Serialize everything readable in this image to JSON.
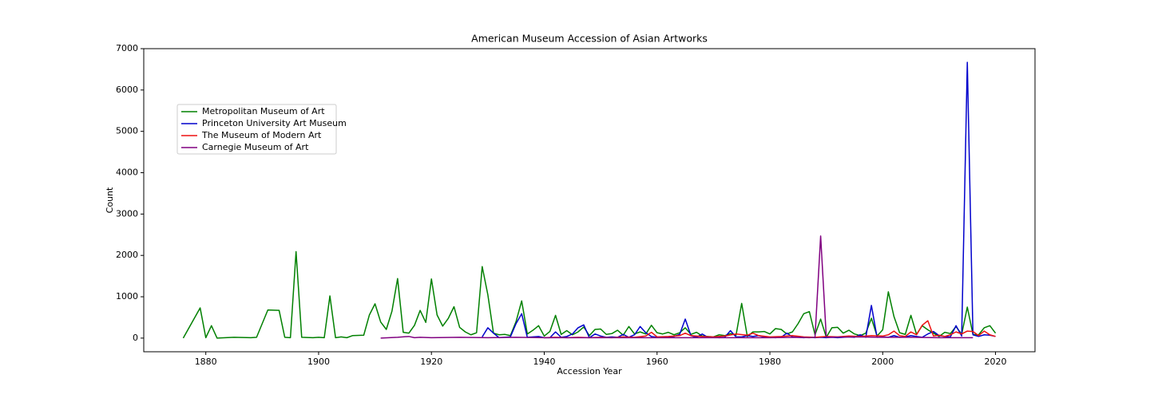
{
  "chart_data": {
    "type": "line",
    "title": "American Museum Accession of Asian Artworks",
    "xlabel": "Accession Year",
    "ylabel": "Count",
    "xlim": [
      1869,
      2027
    ],
    "ylim": [
      -330,
      7000
    ],
    "xticks": [
      1880,
      1900,
      1920,
      1940,
      1960,
      1980,
      2000,
      2020
    ],
    "yticks": [
      0,
      1000,
      2000,
      3000,
      4000,
      5000,
      6000,
      7000
    ],
    "legend": "upper left",
    "grid": false,
    "series": [
      {
        "name": "Metropolitan Museum of Art",
        "color": "#008000",
        "x": [
          1876,
          1879,
          1880,
          1881,
          1882,
          1885,
          1888,
          1889,
          1891,
          1893,
          1894,
          1895,
          1896,
          1897,
          1899,
          1900,
          1901,
          1902,
          1903,
          1904,
          1905,
          1906,
          1908,
          1909,
          1910,
          1911,
          1912,
          1913,
          1914,
          1915,
          1916,
          1917,
          1918,
          1919,
          1920,
          1921,
          1922,
          1923,
          1924,
          1925,
          1926,
          1927,
          1928,
          1929,
          1930,
          1931,
          1932,
          1933,
          1934,
          1935,
          1936,
          1937,
          1938,
          1939,
          1940,
          1941,
          1942,
          1943,
          1944,
          1945,
          1946,
          1947,
          1948,
          1949,
          1950,
          1951,
          1952,
          1953,
          1954,
          1955,
          1956,
          1957,
          1958,
          1959,
          1960,
          1961,
          1962,
          1963,
          1964,
          1965,
          1966,
          1967,
          1968,
          1969,
          1970,
          1971,
          1972,
          1973,
          1974,
          1975,
          1976,
          1977,
          1978,
          1979,
          1980,
          1981,
          1982,
          1983,
          1984,
          1985,
          1986,
          1987,
          1988,
          1989,
          1990,
          1991,
          1992,
          1993,
          1994,
          1995,
          1996,
          1997,
          1998,
          1999,
          2000,
          2001,
          2002,
          2003,
          2004,
          2005,
          2006,
          2007,
          2008,
          2009,
          2010,
          2011,
          2012,
          2013,
          2014,
          2015,
          2016,
          2017,
          2018,
          2019,
          2020
        ],
        "values": [
          0,
          730,
          10,
          300,
          0,
          20,
          10,
          20,
          680,
          670,
          20,
          10,
          2090,
          20,
          10,
          20,
          10,
          1020,
          10,
          30,
          10,
          60,
          70,
          560,
          830,
          390,
          210,
          650,
          1440,
          140,
          120,
          310,
          670,
          380,
          1430,
          560,
          290,
          480,
          760,
          260,
          150,
          80,
          130,
          1730,
          1050,
          120,
          80,
          90,
          60,
          400,
          900,
          100,
          190,
          300,
          50,
          160,
          550,
          90,
          180,
          80,
          150,
          270,
          60,
          210,
          220,
          90,
          110,
          190,
          70,
          280,
          100,
          150,
          100,
          310,
          130,
          100,
          140,
          80,
          130,
          250,
          90,
          140,
          50,
          40,
          30,
          80,
          60,
          110,
          70,
          840,
          40,
          150,
          150,
          160,
          100,
          230,
          210,
          100,
          150,
          350,
          590,
          640,
          80,
          460,
          20,
          250,
          260,
          120,
          190,
          100,
          60,
          120,
          480,
          50,
          200,
          1120,
          520,
          130,
          90,
          550,
          90,
          300,
          200,
          120,
          40,
          140,
          110,
          280,
          90,
          750,
          90,
          80,
          250,
          300,
          120
        ]
      },
      {
        "name": "Princeton University Art Museum",
        "color": "#0000cc",
        "x": [
          1929,
          1930,
          1931,
          1932,
          1933,
          1934,
          1935,
          1936,
          1937,
          1938,
          1939,
          1940,
          1941,
          1942,
          1943,
          1944,
          1945,
          1946,
          1947,
          1948,
          1949,
          1950,
          1951,
          1952,
          1953,
          1954,
          1955,
          1956,
          1957,
          1958,
          1959,
          1960,
          1961,
          1962,
          1963,
          1964,
          1965,
          1966,
          1967,
          1968,
          1969,
          1970,
          1971,
          1972,
          1973,
          1974,
          1975,
          1976,
          1977,
          1978,
          1979,
          1980,
          1981,
          1982,
          1983,
          1984,
          1985,
          1986,
          1987,
          1988,
          1989,
          1990,
          1991,
          1992,
          1993,
          1994,
          1995,
          1996,
          1997,
          1998,
          1999,
          2000,
          2001,
          2002,
          2003,
          2004,
          2005,
          2006,
          2007,
          2008,
          2009,
          2010,
          2011,
          2012,
          2013,
          2014,
          2015,
          2016,
          2017,
          2018,
          2019,
          2020
        ],
        "values": [
          30,
          250,
          120,
          10,
          20,
          30,
          350,
          590,
          20,
          30,
          40,
          10,
          10,
          150,
          20,
          40,
          100,
          250,
          320,
          10,
          100,
          50,
          20,
          30,
          20,
          90,
          20,
          80,
          280,
          130,
          40,
          20,
          30,
          20,
          40,
          90,
          460,
          60,
          20,
          100,
          20,
          30,
          10,
          20,
          180,
          30,
          30,
          60,
          40,
          60,
          30,
          20,
          10,
          20,
          120,
          30,
          20,
          10,
          20,
          10,
          20,
          10,
          20,
          10,
          20,
          30,
          20,
          80,
          20,
          790,
          20,
          30,
          20,
          60,
          20,
          30,
          60,
          40,
          20,
          100,
          160,
          60,
          40,
          30,
          300,
          50,
          6670,
          80,
          40,
          80,
          70,
          40
        ]
      },
      {
        "name": "The Museum of Modern Art",
        "color": "#ee1111",
        "x": [
          1940,
          1942,
          1944,
          1946,
          1948,
          1950,
          1952,
          1954,
          1956,
          1958,
          1959,
          1960,
          1962,
          1964,
          1965,
          1966,
          1968,
          1970,
          1972,
          1974,
          1976,
          1977,
          1978,
          1980,
          1982,
          1984,
          1986,
          1988,
          1990,
          1992,
          1994,
          1996,
          1998,
          2000,
          2001,
          2002,
          2003,
          2004,
          2005,
          2006,
          2007,
          2008,
          2009,
          2010,
          2011,
          2012,
          2013,
          2014,
          2015,
          2016,
          2017,
          2018,
          2019,
          2020
        ],
        "values": [
          10,
          20,
          10,
          20,
          10,
          20,
          10,
          30,
          20,
          50,
          140,
          30,
          40,
          60,
          120,
          60,
          40,
          30,
          50,
          100,
          70,
          120,
          60,
          30,
          40,
          60,
          30,
          20,
          40,
          30,
          50,
          40,
          60,
          50,
          80,
          170,
          60,
          40,
          150,
          80,
          310,
          420,
          50,
          70,
          40,
          80,
          150,
          100,
          170,
          160,
          60,
          170,
          80,
          40
        ]
      },
      {
        "name": "Carnegie Museum of Art",
        "color": "#800080",
        "x": [
          1911,
          1914,
          1916,
          1917,
          1918,
          1920,
          1925,
          1930,
          1935,
          1940,
          1950,
          1960,
          1970,
          1980,
          1985,
          1987,
          1988,
          1989,
          1990,
          1995,
          2000,
          2005,
          2010,
          2016
        ],
        "values": [
          0,
          20,
          40,
          10,
          20,
          10,
          20,
          10,
          20,
          10,
          10,
          10,
          10,
          10,
          20,
          10,
          20,
          2470,
          20,
          30,
          20,
          20,
          10,
          10
        ]
      }
    ]
  }
}
